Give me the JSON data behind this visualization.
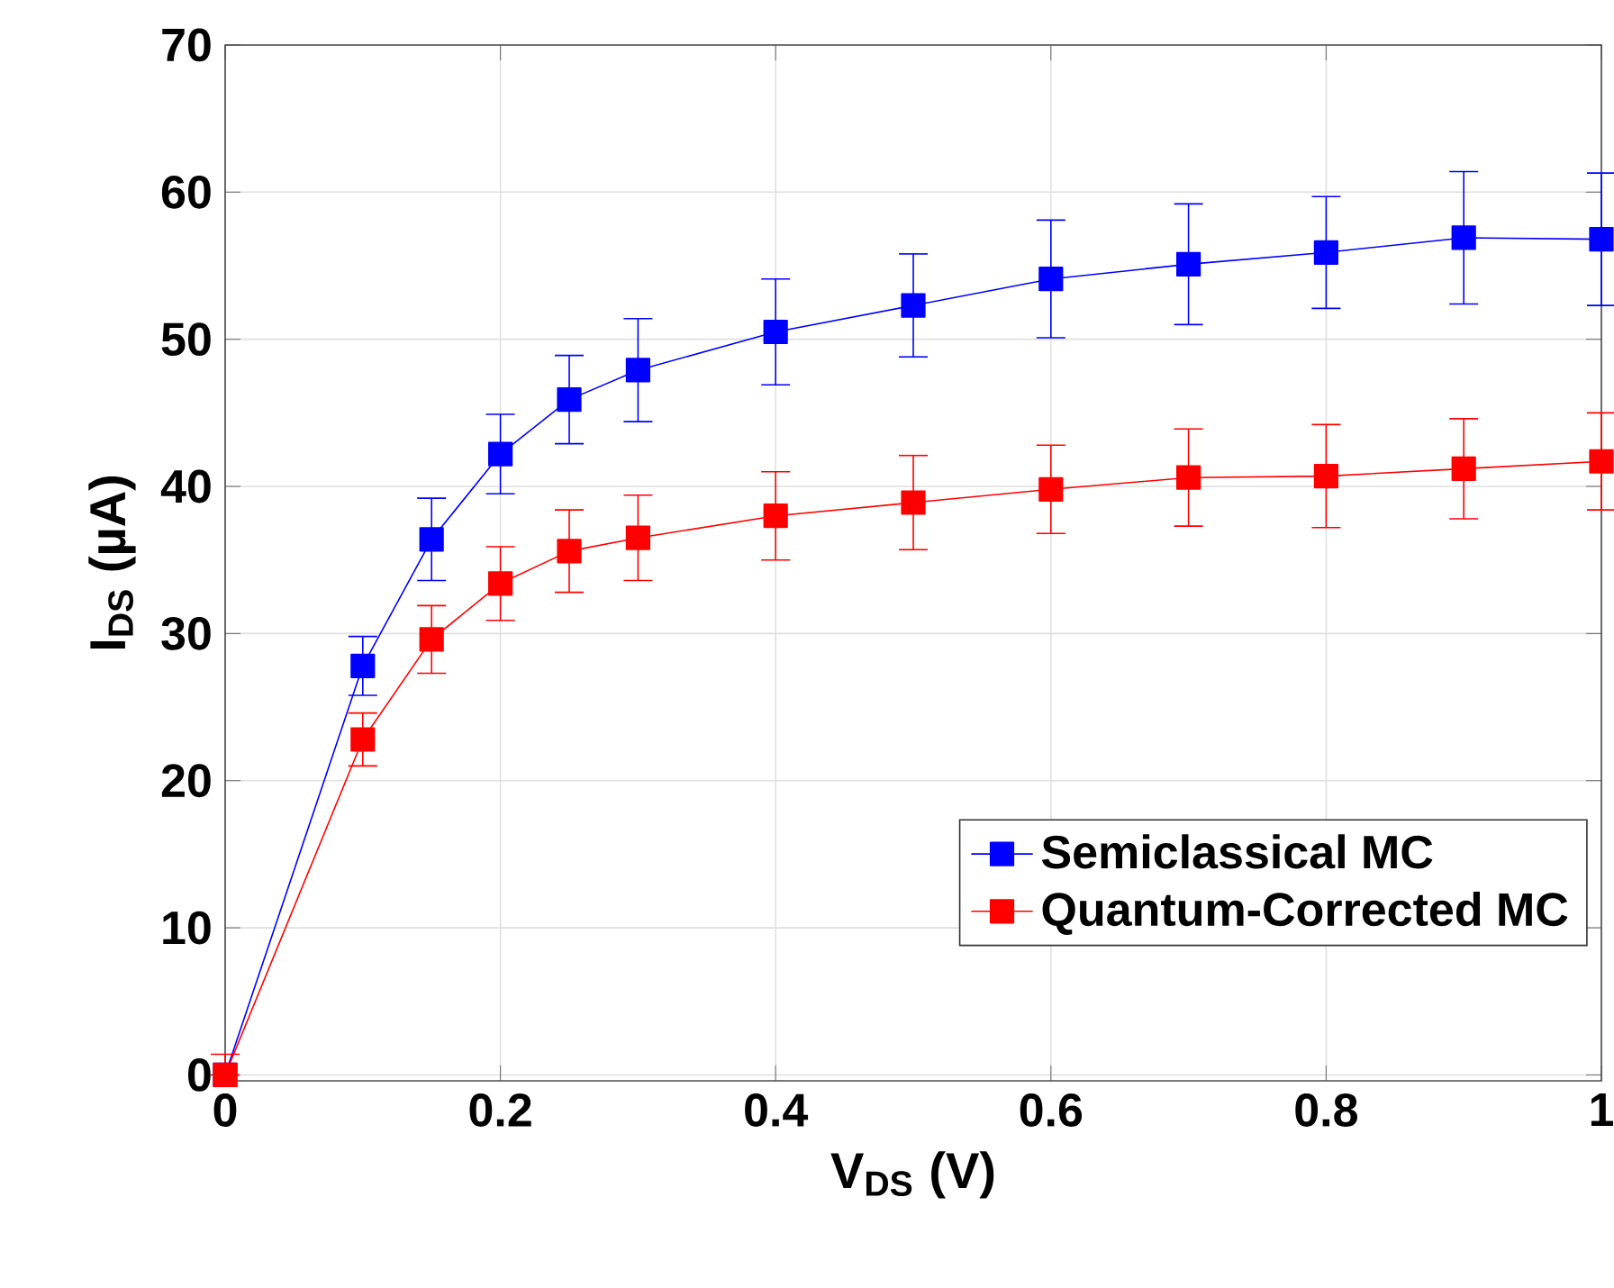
{
  "chart_data": {
    "type": "line",
    "xlabel": "V$_{DS}$ (V)",
    "ylabel": "I$_{DS}$ (µA)",
    "x": [
      0,
      0.1,
      0.15,
      0.2,
      0.25,
      0.3,
      0.4,
      0.5,
      0.6,
      0.7,
      0.8,
      0.9,
      1
    ],
    "series": [
      {
        "name": "Semiclassical MC",
        "color": "#0000ff",
        "values": [
          0,
          27.8,
          36.4,
          42.2,
          45.9,
          47.9,
          50.5,
          52.3,
          54.1,
          55.1,
          55.9,
          56.9,
          56.8
        ],
        "errors": [
          null,
          2,
          2.8,
          2.7,
          3,
          3.5,
          3.6,
          3.5,
          4,
          4.1,
          3.8,
          4.5,
          4.5
        ]
      },
      {
        "name": "Quantum-Corrected MC",
        "color": "#ff0000",
        "values": [
          0,
          22.8,
          29.6,
          33.4,
          35.6,
          36.5,
          38,
          38.9,
          39.8,
          40.6,
          40.7,
          41.2,
          41.7
        ],
        "errors": [
          [
            0,
            1.4
          ],
          1.8,
          2.3,
          2.5,
          2.8,
          2.9,
          3,
          3.2,
          3,
          3.3,
          3.5,
          3.4,
          3.3
        ]
      }
    ],
    "xlim": [
      0,
      1
    ],
    "ylim": [
      -0.4,
      70
    ],
    "xticks": [
      0,
      0.2,
      0.4,
      0.6,
      0.8,
      1
    ],
    "yticks": [
      0,
      10,
      20,
      30,
      40,
      50,
      60,
      70
    ],
    "grid": true,
    "legend": "bottom right",
    "marker": "square",
    "line_style": "solid"
  }
}
